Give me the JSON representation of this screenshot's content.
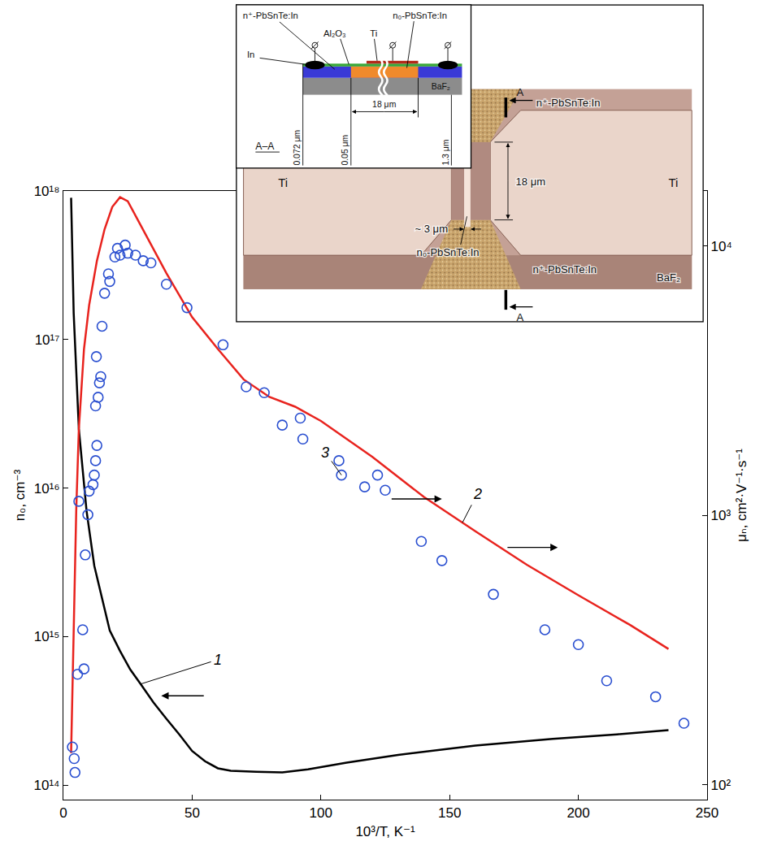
{
  "chart_data": {
    "type": "scatter",
    "xlabel": "10³/T, K⁻¹",
    "ylabel": "n₀, cm⁻³",
    "y2label": "μₙ, cm²·V⁻¹·s⁻¹",
    "log": "y",
    "grid": false,
    "xlim": [
      0,
      250
    ],
    "xticks": [
      0,
      50,
      100,
      150,
      200,
      250
    ],
    "ylim": [
      80000000000000.0,
      1e+18
    ],
    "yticks": [
      {
        "value": 100000000000000.0,
        "label": "10¹⁴"
      },
      {
        "value": 1000000000000000.0,
        "label": "10¹⁵"
      },
      {
        "value": 1e+16,
        "label": "10¹⁶"
      },
      {
        "value": 1e+17,
        "label": "10¹⁷"
      },
      {
        "value": 1e+18,
        "label": "10¹⁸"
      }
    ],
    "y2lim": [
      88,
      16000
    ],
    "y2ticks": [
      {
        "value": 100,
        "label": "10²"
      },
      {
        "value": 1000,
        "label": "10³"
      },
      {
        "value": 10000,
        "label": "10⁴"
      }
    ],
    "series": [
      {
        "type": "line",
        "color": "#000000",
        "line_style": "solid",
        "axis": "y",
        "x": [
          3,
          4,
          6,
          9,
          12,
          15,
          18,
          22,
          26,
          30,
          35,
          40,
          45,
          50,
          55,
          60,
          65,
          75,
          85,
          95,
          110,
          130,
          160,
          190,
          215,
          235
        ],
        "values": [
          9e+17,
          1.5e+17,
          2.5e+16,
          7000000000000000.0,
          3000000000000000.0,
          1800000000000000.0,
          1100000000000000.0,
          800000000000000.0,
          600000000000000.0,
          480000000000000.0,
          360000000000000.0,
          280000000000000.0,
          220000000000000.0,
          170000000000000.0,
          145000000000000.0,
          130000000000000.0,
          125000000000000.0,
          123000000000000.0,
          122000000000000.0,
          128000000000000.0,
          142000000000000.0,
          160000000000000.0,
          185000000000000.0,
          205000000000000.0,
          220000000000000.0,
          235000000000000.0
        ]
      },
      {
        "type": "line",
        "color": "#e8231e",
        "line_style": "solid",
        "axis": "y2",
        "x": [
          3,
          4,
          5,
          6,
          8,
          10,
          13,
          16,
          19,
          22,
          25,
          30,
          35,
          40,
          50,
          60,
          70,
          80,
          90,
          100,
          120,
          140,
          160,
          180,
          200,
          220,
          235
        ],
        "values": [
          131,
          406,
          1056,
          2091,
          4142,
          6030,
          8790,
          11540,
          13970,
          15170,
          14660,
          11940,
          9730,
          7930,
          5440,
          4142,
          3195,
          2750,
          2530,
          2240,
          1647,
          1170,
          873,
          655,
          505,
          392,
          319
        ]
      },
      {
        "type": "scatter",
        "color": "#2a4fd0",
        "marker": "circle-open",
        "axis": "y2",
        "x": [
          3.5,
          4.2,
          4.5,
          5.5,
          8,
          7.5,
          8.5,
          9.5,
          6,
          10,
          11.5,
          12,
          12.5,
          13,
          12.5,
          13.5,
          14,
          14.5,
          12.8,
          15,
          16,
          18,
          17.5,
          20,
          21,
          24,
          22,
          25,
          28,
          31,
          34,
          40,
          48,
          62,
          71,
          78,
          85,
          92,
          93,
          107,
          108,
          117,
          122,
          125,
          139,
          147,
          167,
          187,
          200,
          211,
          230,
          241
        ],
        "values": [
          138,
          125,
          111,
          257,
          269,
          376,
          713,
          1005,
          1127,
          1230,
          1300,
          1410,
          1595,
          1818,
          2547,
          2742,
          3103,
          3271,
          3882,
          5035,
          6674,
          7383,
          7877,
          9099,
          9795,
          10070,
          9244,
          9400,
          9244,
          8810,
          8650,
          7210,
          5900,
          4295,
          2999,
          2853,
          2162,
          2296,
          1920,
          1595,
          1410,
          1275,
          1410,
          1239,
          800,
          679,
          509,
          376,
          331,
          243,
          212,
          169
        ]
      }
    ],
    "annotations": [
      {
        "text": "1",
        "x": 30,
        "y": 480000000000000.0,
        "axis": "y"
      },
      {
        "text": "2",
        "x": 155,
        "y": 940,
        "axis": "y2"
      },
      {
        "text": "3",
        "x": 108,
        "y": 1410,
        "axis": "y2"
      }
    ],
    "arrows": [
      {
        "x0": 55,
        "x1": 38,
        "y": 400000000000000.0,
        "axis": "y"
      },
      {
        "x0": 172,
        "x1": 192,
        "y": 760,
        "axis": "y2"
      },
      {
        "x0": 127,
        "x1": 147,
        "y": 1150,
        "axis": "y2"
      }
    ]
  },
  "inset": {
    "section_title": "A–A",
    "section_mark": "A",
    "cross_section_labels": {
      "n_plus": "n⁺-PbSnTe:In",
      "al2o3": "Al₂O₃",
      "ti": "Ti",
      "n0": "n₀-PbSnTe:In",
      "in": "In",
      "baf2": "BaF₂",
      "d1": "0.072 μm",
      "d2": "0.05 μm",
      "width": "18 μm",
      "d3": "1.3 μm"
    },
    "photo_labels": {
      "ti_left": "Ti",
      "ti_right": "Ti",
      "n_plus_top": "n⁺-PbSnTe:In",
      "n_plus_bottom": "n⁺-PbSnTe:In",
      "n0": "n₀-PbSnTe:In",
      "width": "18 μm",
      "gap": "~ 3 μm",
      "baf2": "BaF₂"
    }
  }
}
